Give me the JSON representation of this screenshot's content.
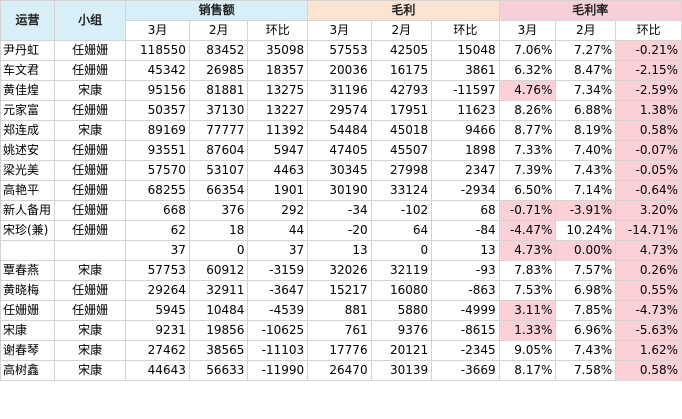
{
  "headers": {
    "ops": "运营",
    "group": "小组",
    "sales": "销售额",
    "profit": "毛利",
    "margin": "毛利率",
    "sub": [
      "3月",
      "2月",
      "环比",
      "3月",
      "2月",
      "环比",
      "3月",
      "2月",
      "环比"
    ]
  },
  "colors": {
    "header_blue": "#d9eff7",
    "header_peach": "#fbe5d2",
    "header_rose": "#f7cfd9",
    "highlight": "#fbd0d6"
  },
  "rows": [
    {
      "name": "尹丹虹",
      "group": "任姗姗",
      "s_mar": "118550",
      "s_feb": "83452",
      "s_mom": "35098",
      "p_mar": "57553",
      "p_feb": "42505",
      "p_mom": "15048",
      "m_mar": "7.06%",
      "m_feb": "7.27%",
      "m_mom": "-0.21%",
      "hl": [
        false,
        false,
        true
      ]
    },
    {
      "name": "车文君",
      "group": "任姗姗",
      "s_mar": "45342",
      "s_feb": "26985",
      "s_mom": "18357",
      "p_mar": "20036",
      "p_feb": "16175",
      "p_mom": "3861",
      "m_mar": "6.32%",
      "m_feb": "8.47%",
      "m_mom": "-2.15%",
      "hl": [
        false,
        false,
        true
      ]
    },
    {
      "name": "黄佳煌",
      "group": "宋康",
      "s_mar": "95156",
      "s_feb": "81881",
      "s_mom": "13275",
      "p_mar": "31196",
      "p_feb": "42793",
      "p_mom": "-11597",
      "m_mar": "4.76%",
      "m_feb": "7.34%",
      "m_mom": "-2.59%",
      "hl": [
        true,
        false,
        true
      ]
    },
    {
      "name": "元家富",
      "group": "任姗姗",
      "s_mar": "50357",
      "s_feb": "37130",
      "s_mom": "13227",
      "p_mar": "29574",
      "p_feb": "17951",
      "p_mom": "11623",
      "m_mar": "8.26%",
      "m_feb": "6.88%",
      "m_mom": "1.38%",
      "hl": [
        false,
        false,
        true
      ]
    },
    {
      "name": "郑连成",
      "group": "宋康",
      "s_mar": "89169",
      "s_feb": "77777",
      "s_mom": "11392",
      "p_mar": "54484",
      "p_feb": "45018",
      "p_mom": "9466",
      "m_mar": "8.77%",
      "m_feb": "8.19%",
      "m_mom": "0.58%",
      "hl": [
        false,
        false,
        true
      ]
    },
    {
      "name": "姚述安",
      "group": "任姗姗",
      "s_mar": "93551",
      "s_feb": "87604",
      "s_mom": "5947",
      "p_mar": "47405",
      "p_feb": "45507",
      "p_mom": "1898",
      "m_mar": "7.33%",
      "m_feb": "7.40%",
      "m_mom": "-0.07%",
      "hl": [
        false,
        false,
        true
      ]
    },
    {
      "name": "梁光美",
      "group": "任姗姗",
      "s_mar": "57570",
      "s_feb": "53107",
      "s_mom": "4463",
      "p_mar": "30345",
      "p_feb": "27998",
      "p_mom": "2347",
      "m_mar": "7.39%",
      "m_feb": "7.43%",
      "m_mom": "-0.05%",
      "hl": [
        false,
        false,
        true
      ]
    },
    {
      "name": "高艳平",
      "group": "任姗姗",
      "s_mar": "68255",
      "s_feb": "66354",
      "s_mom": "1901",
      "p_mar": "30190",
      "p_feb": "33124",
      "p_mom": "-2934",
      "m_mar": "6.50%",
      "m_feb": "7.14%",
      "m_mom": "-0.64%",
      "hl": [
        false,
        false,
        true
      ]
    },
    {
      "name": "新人备用",
      "group": "任姗姗",
      "s_mar": "668",
      "s_feb": "376",
      "s_mom": "292",
      "p_mar": "-34",
      "p_feb": "-102",
      "p_mom": "68",
      "m_mar": "-0.71%",
      "m_feb": "-3.91%",
      "m_mom": "3.20%",
      "hl": [
        true,
        true,
        true
      ]
    },
    {
      "name": "宋珍(兼)",
      "group": "任姗姗",
      "s_mar": "62",
      "s_feb": "18",
      "s_mom": "44",
      "p_mar": "-20",
      "p_feb": "64",
      "p_mom": "-84",
      "m_mar": "-4.47%",
      "m_feb": "10.24%",
      "m_mom": "-14.71%",
      "hl": [
        true,
        false,
        true
      ]
    },
    {
      "name": "",
      "group": "",
      "s_mar": "37",
      "s_feb": "0",
      "s_mom": "37",
      "p_mar": "13",
      "p_feb": "0",
      "p_mom": "13",
      "m_mar": "4.73%",
      "m_feb": "0.00%",
      "m_mom": "4.73%",
      "hl": [
        true,
        true,
        true
      ]
    },
    {
      "name": "覃春燕",
      "group": "宋康",
      "s_mar": "57753",
      "s_feb": "60912",
      "s_mom": "-3159",
      "p_mar": "32026",
      "p_feb": "32119",
      "p_mom": "-93",
      "m_mar": "7.83%",
      "m_feb": "7.57%",
      "m_mom": "0.26%",
      "hl": [
        false,
        false,
        true
      ]
    },
    {
      "name": "黄晓梅",
      "group": "任姗姗",
      "s_mar": "29264",
      "s_feb": "32911",
      "s_mom": "-3647",
      "p_mar": "15217",
      "p_feb": "16080",
      "p_mom": "-863",
      "m_mar": "7.53%",
      "m_feb": "6.98%",
      "m_mom": "0.55%",
      "hl": [
        false,
        false,
        true
      ]
    },
    {
      "name": "任姗姗",
      "group": "任姗姗",
      "s_mar": "5945",
      "s_feb": "10484",
      "s_mom": "-4539",
      "p_mar": "881",
      "p_feb": "5880",
      "p_mom": "-4999",
      "m_mar": "3.11%",
      "m_feb": "7.85%",
      "m_mom": "-4.73%",
      "hl": [
        true,
        false,
        true
      ]
    },
    {
      "name": "宋康",
      "group": "宋康",
      "s_mar": "9231",
      "s_feb": "19856",
      "s_mom": "-10625",
      "p_mar": "761",
      "p_feb": "9376",
      "p_mom": "-8615",
      "m_mar": "1.33%",
      "m_feb": "6.96%",
      "m_mom": "-5.63%",
      "hl": [
        true,
        false,
        true
      ]
    },
    {
      "name": "谢春琴",
      "group": "宋康",
      "s_mar": "27462",
      "s_feb": "38565",
      "s_mom": "-11103",
      "p_mar": "17776",
      "p_feb": "20121",
      "p_mom": "-2345",
      "m_mar": "9.05%",
      "m_feb": "7.43%",
      "m_mom": "1.62%",
      "hl": [
        false,
        false,
        true
      ]
    },
    {
      "name": "高树鑫",
      "group": "宋康",
      "s_mar": "44643",
      "s_feb": "56633",
      "s_mom": "-11990",
      "p_mar": "26470",
      "p_feb": "30139",
      "p_mom": "-3669",
      "m_mar": "8.17%",
      "m_feb": "7.58%",
      "m_mom": "0.58%",
      "hl": [
        false,
        false,
        true
      ]
    }
  ]
}
